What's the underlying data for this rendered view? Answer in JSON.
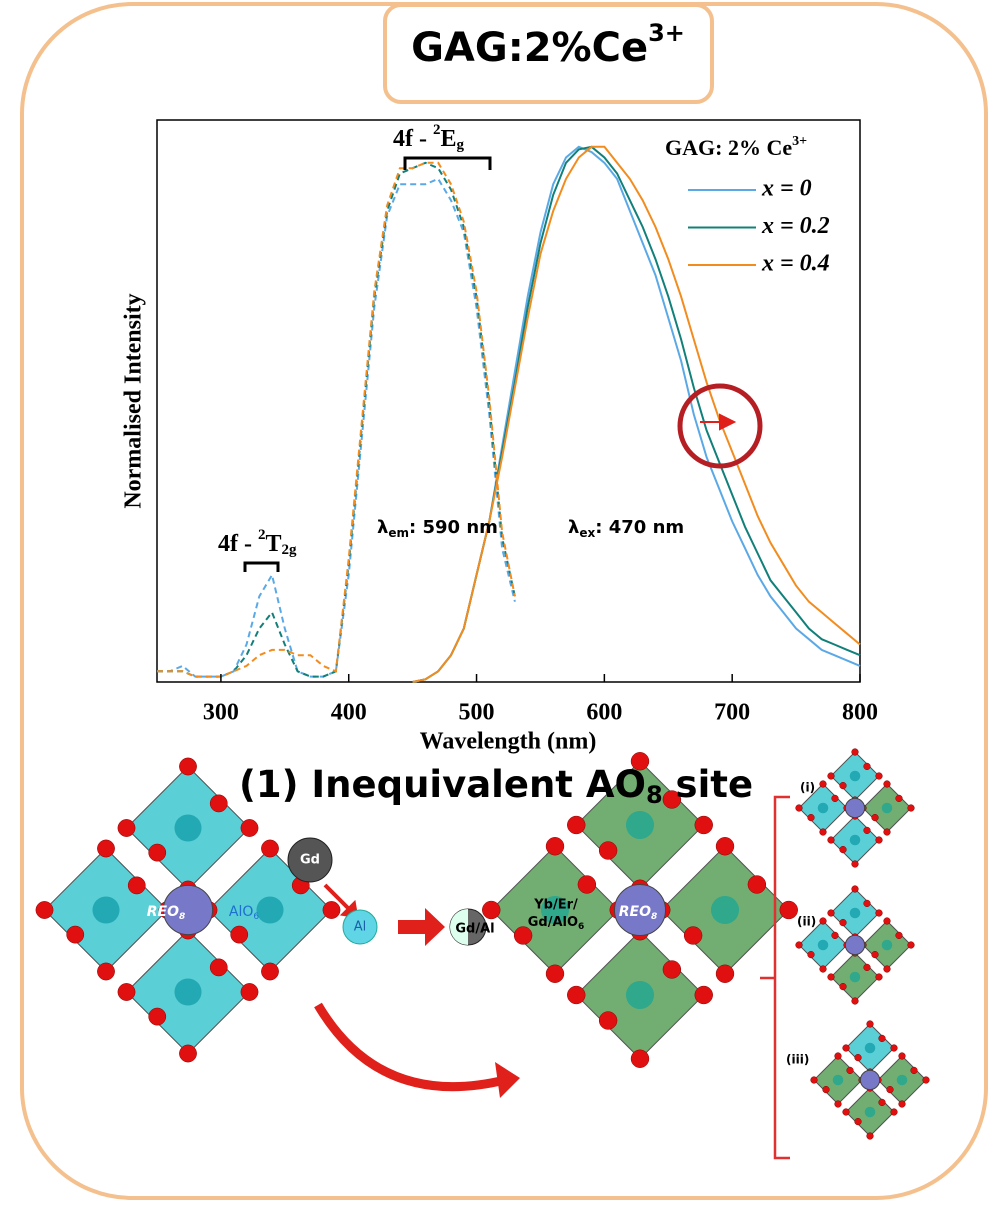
{
  "header": {
    "title": {
      "text": "GAG:2%Ce",
      "sup": "3+"
    }
  },
  "chart_data": {
    "type": "line",
    "xlabel": "Wavelength (nm)",
    "ylabel": "Normalised Intensity",
    "xlim": [
      250,
      800
    ],
    "ylim": [
      0,
      1.05
    ],
    "xticks": [
      300,
      400,
      500,
      600,
      700,
      800
    ],
    "legend_title": {
      "text": "GAG: 2% Ce",
      "sup": "3+"
    },
    "legend": "upper right",
    "annotations": {
      "eg": {
        "text": "4f - ",
        "sup": "2",
        "main": "E",
        "sub": "g"
      },
      "t2g": {
        "text": "4f - ",
        "sup": "2",
        "main": "T",
        "sub": "2g"
      },
      "em": {
        "symbol": "λ",
        "sub": "em",
        "text": ": 590 nm"
      },
      "ex": {
        "symbol": "λ",
        "sub": "ex",
        "text": ": 470 nm"
      }
    },
    "x": [
      250,
      260,
      270,
      280,
      290,
      300,
      310,
      320,
      330,
      340,
      350,
      360,
      370,
      380,
      390,
      400,
      410,
      420,
      430,
      440,
      450,
      460,
      470,
      480,
      490,
      500,
      510,
      520,
      530,
      540,
      550,
      560,
      570,
      580,
      590,
      600,
      610,
      620,
      630,
      640,
      650,
      660,
      670,
      680,
      690,
      700,
      710,
      720,
      730,
      740,
      750,
      760,
      770,
      780,
      790,
      800
    ],
    "series": [
      {
        "name": "x = 0",
        "color": "#5aa9e6",
        "excitation": [
          0.02,
          0.02,
          0.03,
          0.01,
          0.01,
          0.01,
          0.02,
          0.07,
          0.16,
          0.2,
          0.1,
          0.02,
          0.01,
          0.01,
          0.02,
          0.2,
          0.45,
          0.7,
          0.87,
          0.93,
          0.93,
          0.93,
          0.94,
          0.9,
          0.84,
          0.7,
          0.5,
          0.25,
          0.15,
          null,
          null,
          null,
          null,
          null,
          null,
          null,
          null,
          null,
          null,
          null,
          null,
          null,
          null,
          null,
          null,
          null,
          null,
          null,
          null,
          null,
          null,
          null,
          null,
          null,
          null,
          null
        ],
        "values": [
          null,
          null,
          null,
          null,
          null,
          null,
          null,
          null,
          null,
          null,
          null,
          null,
          null,
          null,
          null,
          null,
          null,
          null,
          null,
          null,
          0,
          0.005,
          0.02,
          0.05,
          0.1,
          0.2,
          0.3,
          0.44,
          0.58,
          0.72,
          0.84,
          0.93,
          0.98,
          1.0,
          0.99,
          0.97,
          0.94,
          0.88,
          0.82,
          0.76,
          0.68,
          0.6,
          0.5,
          0.42,
          0.36,
          0.3,
          0.25,
          0.2,
          0.16,
          0.13,
          0.1,
          0.08,
          0.06,
          0.05,
          0.04,
          0.03
        ]
      },
      {
        "name": "x = 0.2",
        "color": "#12807a",
        "excitation": [
          0.02,
          0.02,
          0.02,
          0.01,
          0.01,
          0.01,
          0.02,
          0.05,
          0.1,
          0.13,
          0.07,
          0.02,
          0.01,
          0.01,
          0.02,
          0.22,
          0.47,
          0.72,
          0.88,
          0.95,
          0.96,
          0.97,
          0.96,
          0.92,
          0.85,
          0.72,
          0.52,
          0.27,
          0.16,
          null,
          null,
          null,
          null,
          null,
          null,
          null,
          null,
          null,
          null,
          null,
          null,
          null,
          null,
          null,
          null,
          null,
          null,
          null,
          null,
          null,
          null,
          null,
          null,
          null,
          null,
          null
        ],
        "values": [
          null,
          null,
          null,
          null,
          null,
          null,
          null,
          null,
          null,
          null,
          null,
          null,
          null,
          null,
          null,
          null,
          null,
          null,
          null,
          null,
          0,
          0.005,
          0.02,
          0.05,
          0.1,
          0.2,
          0.3,
          0.43,
          0.56,
          0.7,
          0.82,
          0.91,
          0.97,
          0.995,
          1.0,
          0.98,
          0.95,
          0.9,
          0.85,
          0.79,
          0.72,
          0.64,
          0.55,
          0.47,
          0.41,
          0.35,
          0.29,
          0.24,
          0.19,
          0.16,
          0.13,
          0.1,
          0.08,
          0.07,
          0.06,
          0.05
        ]
      },
      {
        "name": "x = 0.4",
        "color": "#f28c1e",
        "excitation": [
          0.02,
          0.02,
          0.02,
          0.01,
          0.01,
          0.01,
          0.02,
          0.03,
          0.05,
          0.06,
          0.06,
          0.05,
          0.05,
          0.03,
          0.02,
          0.23,
          0.48,
          0.73,
          0.89,
          0.96,
          0.96,
          0.97,
          0.97,
          0.93,
          0.86,
          0.73,
          0.53,
          0.28,
          0.16,
          null,
          null,
          null,
          null,
          null,
          null,
          null,
          null,
          null,
          null,
          null,
          null,
          null,
          null,
          null,
          null,
          null,
          null,
          null,
          null,
          null,
          null,
          null,
          null,
          null,
          null,
          null
        ],
        "values": [
          null,
          null,
          null,
          null,
          null,
          null,
          null,
          null,
          null,
          null,
          null,
          null,
          null,
          null,
          null,
          null,
          null,
          null,
          null,
          null,
          0,
          0.005,
          0.02,
          0.05,
          0.1,
          0.2,
          0.3,
          0.42,
          0.55,
          0.68,
          0.8,
          0.88,
          0.94,
          0.98,
          1.0,
          1.0,
          0.97,
          0.94,
          0.9,
          0.85,
          0.79,
          0.72,
          0.64,
          0.56,
          0.49,
          0.43,
          0.37,
          0.31,
          0.26,
          0.22,
          0.18,
          0.15,
          0.13,
          0.11,
          0.09,
          0.07
        ]
      }
    ]
  },
  "diagram": {
    "heading": {
      "text": "(1) Inequivalent AO",
      "sub": "8",
      "tail": " site"
    },
    "left": {
      "center": {
        "text": "REO",
        "sub": "8"
      },
      "aux": {
        "text": "AlO",
        "sub": "6"
      }
    },
    "gd": "Gd",
    "al": "Al",
    "mixed": "Gd/Al",
    "right": {
      "line1": "Yb/Er/",
      "line2": {
        "text": "Gd/AlO",
        "sub": "6"
      },
      "center": {
        "text": "REO",
        "sub": "8"
      }
    },
    "variants": [
      "(i)",
      "(ii)",
      "(iii)"
    ]
  }
}
